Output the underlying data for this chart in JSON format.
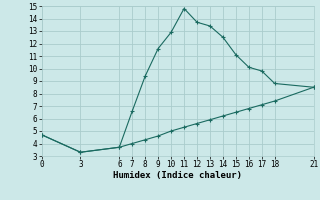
{
  "xlabel": "Humidex (Indice chaleur)",
  "bg_color": "#cce8e8",
  "grid_color": "#aacccc",
  "line_color": "#1a6a60",
  "line1_x": [
    0,
    3,
    6,
    7,
    8,
    9,
    10,
    11,
    12,
    13,
    14,
    15,
    16,
    17,
    18,
    21
  ],
  "line1_y": [
    4.7,
    3.3,
    3.7,
    6.6,
    9.4,
    11.6,
    12.9,
    14.8,
    13.7,
    13.4,
    12.5,
    11.1,
    10.1,
    9.8,
    8.8,
    8.5
  ],
  "line2_x": [
    0,
    3,
    6,
    7,
    8,
    9,
    10,
    11,
    12,
    13,
    14,
    15,
    16,
    17,
    18,
    21
  ],
  "line2_y": [
    4.7,
    3.3,
    3.7,
    4.0,
    4.3,
    4.6,
    5.0,
    5.3,
    5.6,
    5.9,
    6.2,
    6.5,
    6.8,
    7.1,
    7.4,
    8.5
  ],
  "xlim": [
    0,
    21
  ],
  "ylim": [
    3,
    15
  ],
  "xticks": [
    0,
    3,
    6,
    7,
    8,
    9,
    10,
    11,
    12,
    13,
    14,
    15,
    16,
    17,
    18,
    21
  ],
  "yticks": [
    3,
    4,
    5,
    6,
    7,
    8,
    9,
    10,
    11,
    12,
    13,
    14,
    15
  ],
  "xlabel_fontsize": 6.5,
  "tick_fontsize": 5.5,
  "linewidth": 0.8,
  "markersize": 3,
  "markeredgewidth": 0.8
}
